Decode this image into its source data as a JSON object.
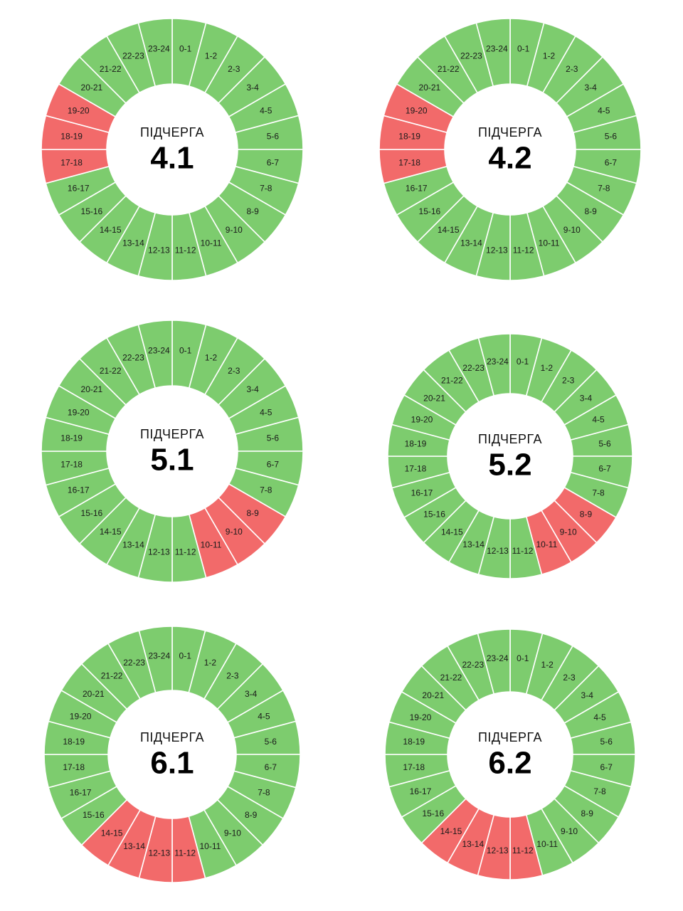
{
  "colors": {
    "on": "#7dcc6e",
    "off": "#f26a6a",
    "divider": "#ffffff",
    "hole": "#ffffff"
  },
  "hour_labels": [
    "0-1",
    "1-2",
    "2-3",
    "3-4",
    "4-5",
    "5-6",
    "6-7",
    "7-8",
    "8-9",
    "9-10",
    "10-11",
    "11-12",
    "12-13",
    "13-14",
    "14-15",
    "15-16",
    "16-17",
    "17-18",
    "18-19",
    "19-20",
    "20-21",
    "21-22",
    "22-23",
    "23-24"
  ],
  "chart_data": [
    {
      "type": "pie",
      "subtype": "donut-schedule",
      "caption": "ПІДЧЕРГА",
      "queue": "4.1",
      "categories": [
        "0-1",
        "1-2",
        "2-3",
        "3-4",
        "4-5",
        "5-6",
        "6-7",
        "7-8",
        "8-9",
        "9-10",
        "10-11",
        "11-12",
        "12-13",
        "13-14",
        "14-15",
        "15-16",
        "16-17",
        "17-18",
        "18-19",
        "19-20",
        "20-21",
        "21-22",
        "22-23",
        "23-24"
      ],
      "outage_hours": [
        "17-18",
        "18-19",
        "19-20"
      ]
    },
    {
      "type": "pie",
      "subtype": "donut-schedule",
      "caption": "ПІДЧЕРГА",
      "queue": "4.2",
      "categories": [
        "0-1",
        "1-2",
        "2-3",
        "3-4",
        "4-5",
        "5-6",
        "6-7",
        "7-8",
        "8-9",
        "9-10",
        "10-11",
        "11-12",
        "12-13",
        "13-14",
        "14-15",
        "15-16",
        "16-17",
        "17-18",
        "18-19",
        "19-20",
        "20-21",
        "21-22",
        "22-23",
        "23-24"
      ],
      "outage_hours": [
        "17-18",
        "18-19",
        "19-20"
      ]
    },
    {
      "type": "pie",
      "subtype": "donut-schedule",
      "caption": "ПІДЧЕРГА",
      "queue": "5.1",
      "categories": [
        "0-1",
        "1-2",
        "2-3",
        "3-4",
        "4-5",
        "5-6",
        "6-7",
        "7-8",
        "8-9",
        "9-10",
        "10-11",
        "11-12",
        "12-13",
        "13-14",
        "14-15",
        "15-16",
        "16-17",
        "17-18",
        "18-19",
        "19-20",
        "20-21",
        "21-22",
        "22-23",
        "23-24"
      ],
      "outage_hours": [
        "8-9",
        "9-10",
        "10-11"
      ]
    },
    {
      "type": "pie",
      "subtype": "donut-schedule",
      "caption": "ПІДЧЕРГА",
      "queue": "5.2",
      "categories": [
        "0-1",
        "1-2",
        "2-3",
        "3-4",
        "4-5",
        "5-6",
        "6-7",
        "7-8",
        "8-9",
        "9-10",
        "10-11",
        "11-12",
        "12-13",
        "13-14",
        "14-15",
        "15-16",
        "16-17",
        "17-18",
        "18-19",
        "19-20",
        "20-21",
        "21-22",
        "22-23",
        "23-24"
      ],
      "outage_hours": [
        "8-9",
        "9-10",
        "10-11"
      ]
    },
    {
      "type": "pie",
      "subtype": "donut-schedule",
      "caption": "ПІДЧЕРГА",
      "queue": "6.1",
      "categories": [
        "0-1",
        "1-2",
        "2-3",
        "3-4",
        "4-5",
        "5-6",
        "6-7",
        "7-8",
        "8-9",
        "9-10",
        "10-11",
        "11-12",
        "12-13",
        "13-14",
        "14-15",
        "15-16",
        "16-17",
        "17-18",
        "18-19",
        "19-20",
        "20-21",
        "21-22",
        "22-23",
        "23-24"
      ],
      "outage_hours": [
        "11-12",
        "12-13",
        "13-14",
        "14-15"
      ]
    },
    {
      "type": "pie",
      "subtype": "donut-schedule",
      "caption": "ПІДЧЕРГА",
      "queue": "6.2",
      "categories": [
        "0-1",
        "1-2",
        "2-3",
        "3-4",
        "4-5",
        "5-6",
        "6-7",
        "7-8",
        "8-9",
        "9-10",
        "10-11",
        "11-12",
        "12-13",
        "13-14",
        "14-15",
        "15-16",
        "16-17",
        "17-18",
        "18-19",
        "19-20",
        "20-21",
        "21-22",
        "22-23",
        "23-24"
      ],
      "outage_hours": [
        "11-12",
        "12-13",
        "13-14",
        "14-15"
      ]
    }
  ]
}
